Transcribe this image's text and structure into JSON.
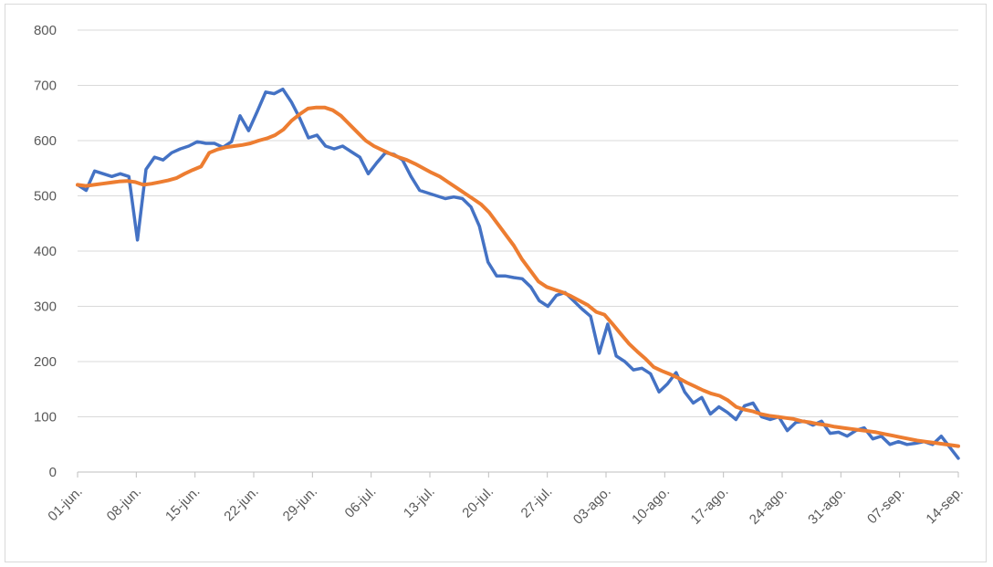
{
  "chart_data": {
    "type": "line",
    "title": "",
    "xlabel": "",
    "ylabel": "",
    "ylim": [
      0,
      800
    ],
    "yticks": [
      0,
      100,
      200,
      300,
      400,
      500,
      600,
      700,
      800
    ],
    "grid": true,
    "legend": "none",
    "xtick_labels": [
      "01-jun.",
      "08-jun.",
      "15-jun.",
      "22-jun.",
      "29-jun.",
      "06-jul.",
      "13-jul.",
      "20-jul.",
      "27-jul.",
      "03-ago.",
      "10-ago.",
      "17-ago.",
      "24-ago.",
      "31-ago.",
      "07-sep.",
      "14-sep."
    ],
    "series": [
      {
        "color": "#4472c4",
        "values": [
          520,
          510,
          545,
          540,
          535,
          540,
          535,
          420,
          548,
          570,
          565,
          578,
          585,
          590,
          598,
          595,
          595,
          588,
          598,
          645,
          618,
          652,
          688,
          685,
          693,
          670,
          640,
          605,
          610,
          590,
          585,
          590,
          580,
          570,
          540,
          560,
          578,
          575,
          565,
          535,
          510,
          505,
          500,
          495,
          498,
          495,
          480,
          445,
          380,
          355,
          355,
          352,
          350,
          335,
          310,
          300,
          320,
          325,
          310,
          295,
          282,
          215,
          268,
          210,
          200,
          185,
          188,
          178,
          145,
          160,
          180,
          145,
          125,
          135,
          105,
          118,
          108,
          95,
          120,
          125,
          100,
          95,
          100,
          75,
          90,
          92,
          85,
          92,
          70,
          72,
          65,
          75,
          80,
          60,
          65,
          50,
          55,
          50,
          52,
          55,
          50,
          65,
          45,
          25
        ]
      },
      {
        "color": "#ed7d31",
        "values": [
          520,
          518,
          520,
          522,
          524,
          526,
          527,
          525,
          520,
          522,
          525,
          528,
          532,
          540,
          547,
          553,
          578,
          584,
          588,
          590,
          592,
          595,
          600,
          604,
          610,
          620,
          636,
          648,
          658,
          660,
          660,
          655,
          645,
          630,
          615,
          600,
          590,
          583,
          576,
          570,
          565,
          558,
          550,
          542,
          535,
          525,
          515,
          505,
          495,
          485,
          470,
          450,
          430,
          410,
          385,
          365,
          345,
          335,
          330,
          325,
          318,
          310,
          302,
          290,
          285,
          268,
          250,
          232,
          218,
          205,
          190,
          183,
          177,
          170,
          162,
          155,
          148,
          142,
          138,
          130,
          118,
          113,
          110,
          105,
          102,
          100,
          98,
          96,
          92,
          90,
          87,
          85,
          82,
          80,
          78,
          76,
          74,
          72,
          69,
          66,
          63,
          60,
          57,
          55,
          53,
          51,
          49,
          47
        ]
      }
    ]
  }
}
